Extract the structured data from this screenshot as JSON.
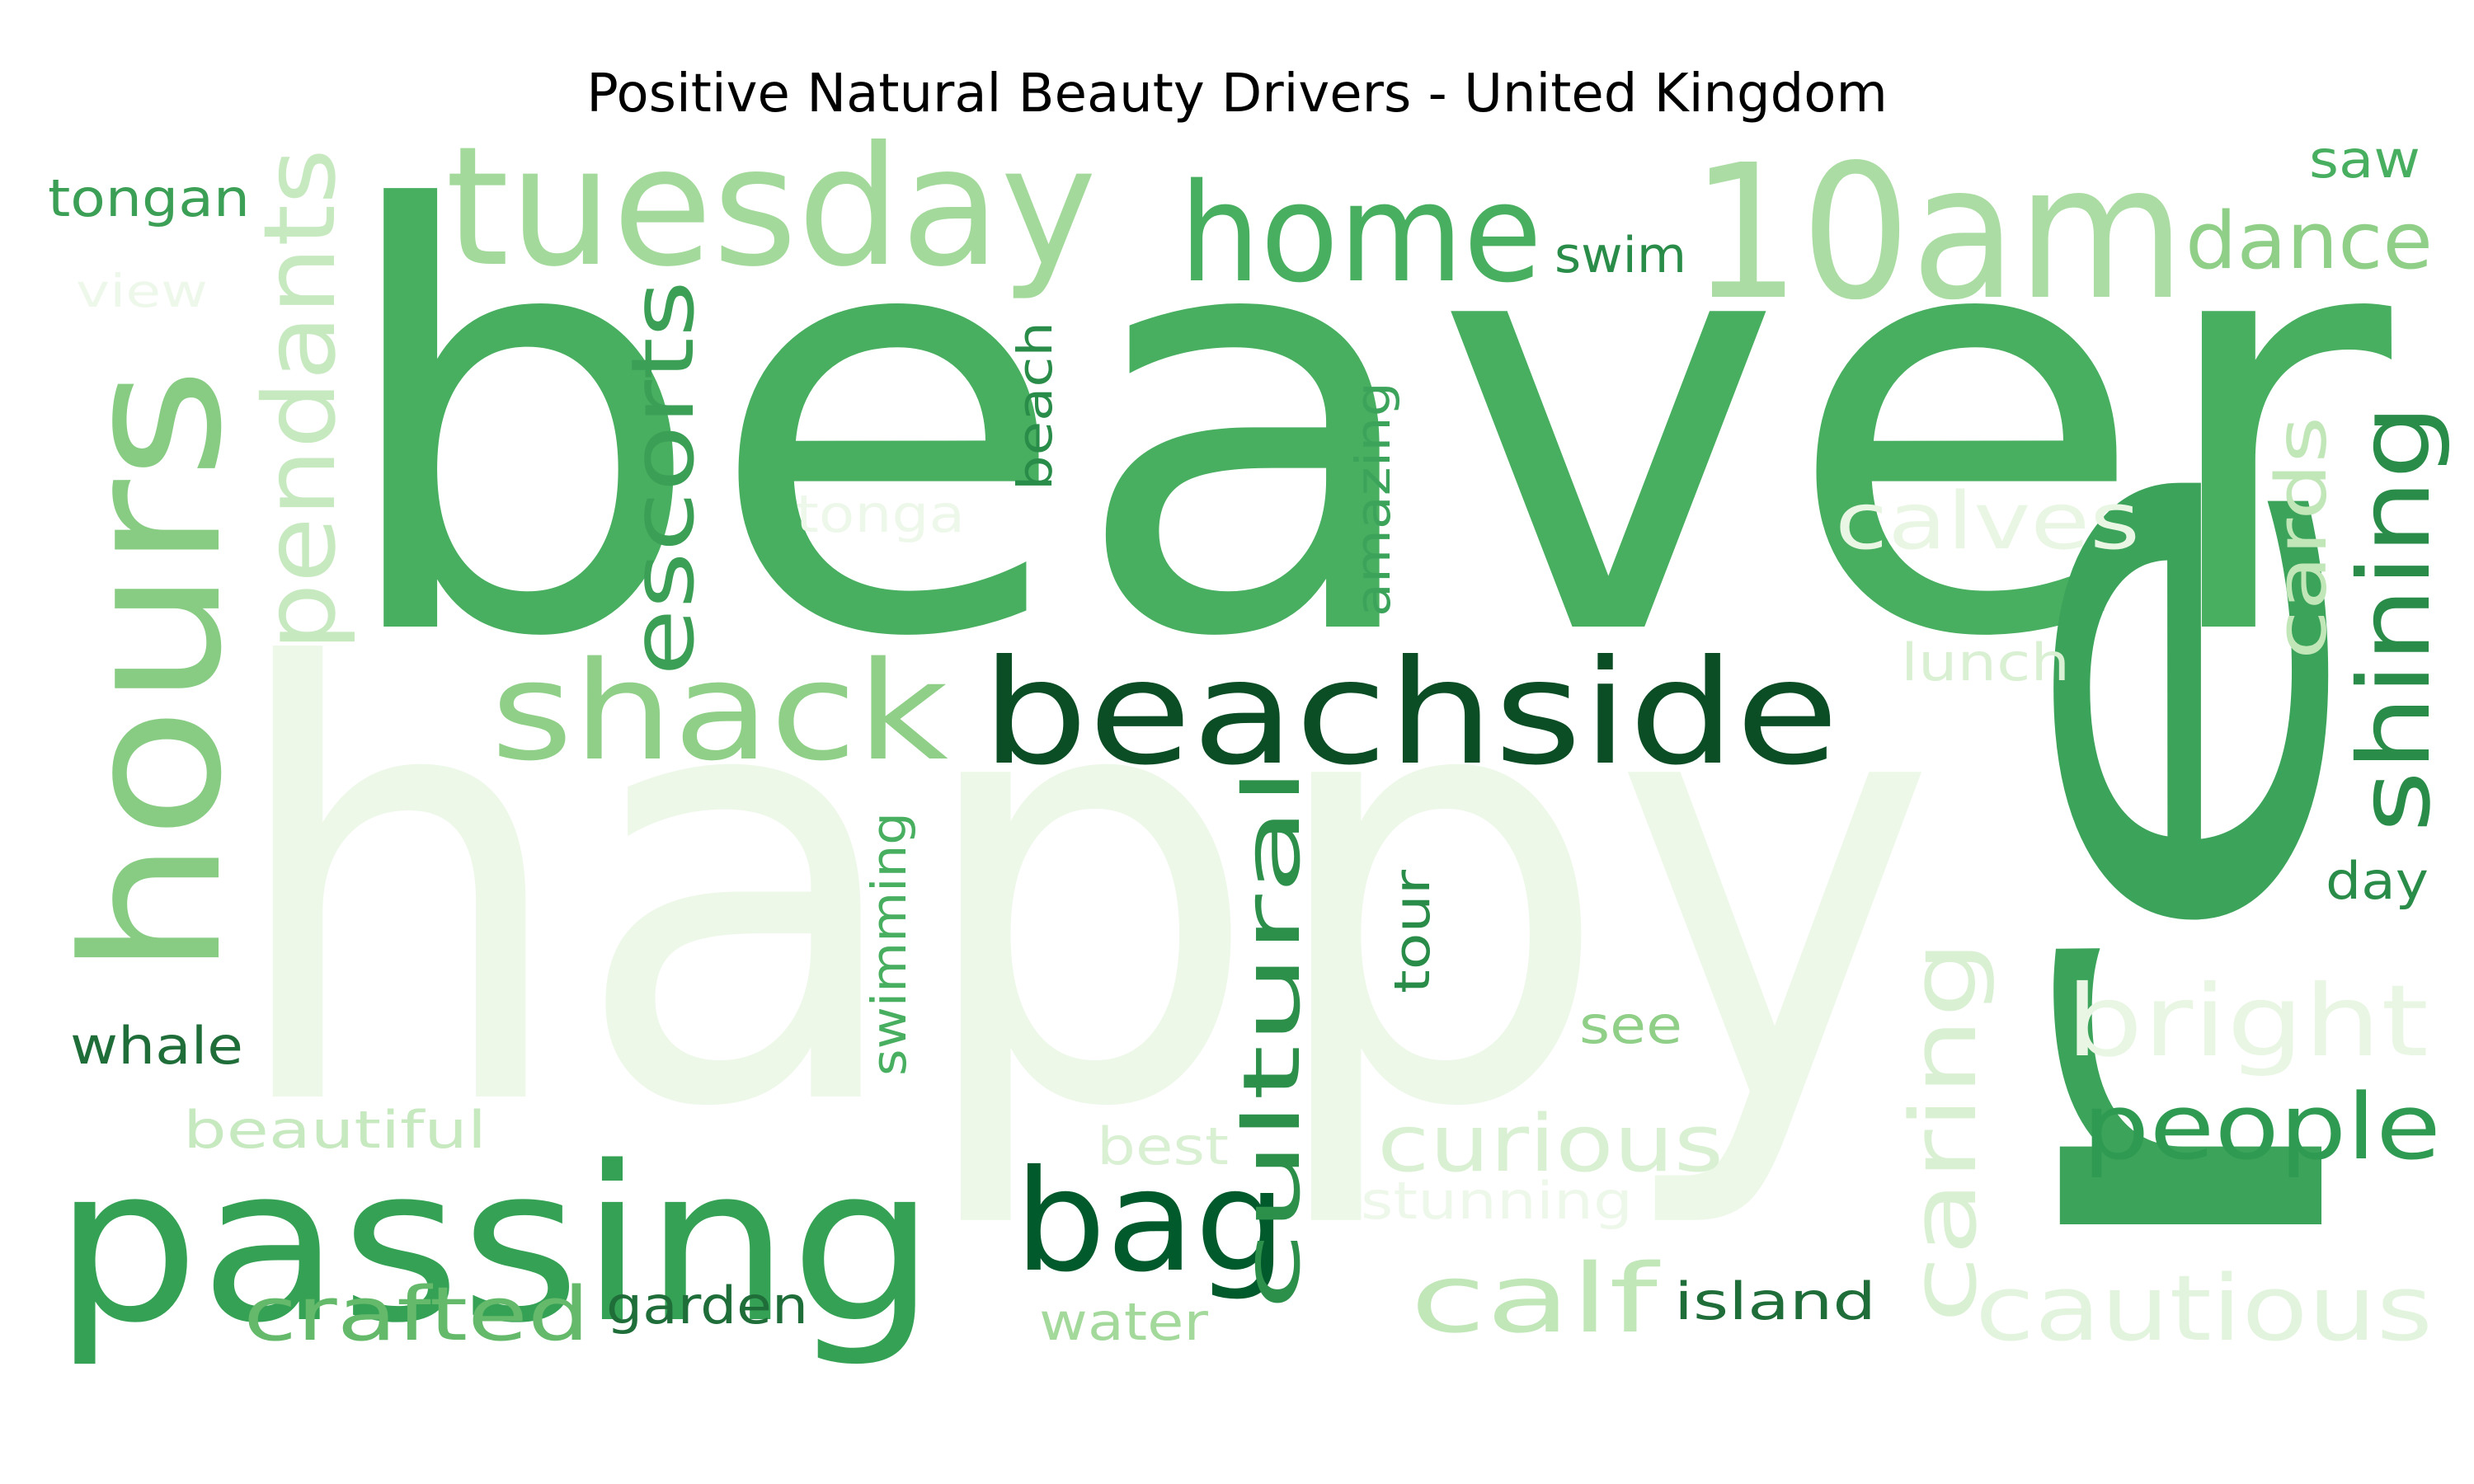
{
  "title": "Positive Natural Beauty Drivers - United Kingdom",
  "palette": {
    "lightest": "#edf8e9",
    "very_light": "#d9f0d3",
    "light": "#c7e9c0",
    "light_mid": "#a1d99b",
    "mid": "#74c476",
    "mid_dark": "#4caf5c",
    "dark": "#31a354",
    "darker": "#238b45",
    "darkest": "#00441b",
    "deep": "#005a2c"
  },
  "words": [
    {
      "text": "beaver",
      "color": "#48ae60"
    },
    {
      "text": "happy",
      "color": "#edf8e9"
    },
    {
      "text": "re",
      "color": "#3ca35a"
    },
    {
      "text": "passing",
      "color": "#35a155"
    },
    {
      "text": "beachside",
      "color": "#0b4d25"
    },
    {
      "text": "hours",
      "color": "#88cc84"
    },
    {
      "text": "tuesday",
      "color": "#a4d99c"
    },
    {
      "text": "home",
      "color": "#48ae60"
    },
    {
      "text": "10am",
      "color": "#abdca3"
    },
    {
      "text": "shack",
      "color": "#8fcf88"
    },
    {
      "text": "bag",
      "color": "#005a2c"
    },
    {
      "text": "cultural",
      "color": "#2c8f4a"
    },
    {
      "text": "escorts",
      "color": "#3b9f55"
    },
    {
      "text": "pendants",
      "color": "#c7e9c0"
    },
    {
      "text": "shining",
      "color": "#2a8c49"
    },
    {
      "text": "dance",
      "color": "#8fcf88"
    },
    {
      "text": "crafted",
      "color": "#64b96a"
    },
    {
      "text": "calf",
      "color": "#c1e6b8"
    },
    {
      "text": "cautious",
      "color": "#e3f4de"
    },
    {
      "text": "people",
      "color": "#2f9a51"
    },
    {
      "text": "curious",
      "color": "#d9f0d3"
    },
    {
      "text": "bright",
      "color": "#e8f6e3"
    },
    {
      "text": "caring",
      "color": "#d9f0d3"
    },
    {
      "text": "calves",
      "color": "#e8f6e3"
    },
    {
      "text": "cards",
      "color": "#c1e6b8"
    },
    {
      "text": "tongan",
      "color": "#3b9f55"
    },
    {
      "text": "view",
      "color": "#eef8ea"
    },
    {
      "text": "saw",
      "color": "#48ae60"
    },
    {
      "text": "swim",
      "color": "#2a8c49"
    },
    {
      "text": "beach",
      "color": "#2a8c49"
    },
    {
      "text": "amazing",
      "color": "#3ca35a"
    },
    {
      "text": "tonga",
      "color": "#eef8ea"
    },
    {
      "text": "lunch",
      "color": "#d9f0d3"
    },
    {
      "text": "swimming",
      "color": "#48ae60"
    },
    {
      "text": "tour",
      "color": "#2a8c49"
    },
    {
      "text": "day",
      "color": "#2a8c49"
    },
    {
      "text": "see",
      "color": "#8fcf88"
    },
    {
      "text": "whale",
      "color": "#1f6e3a"
    },
    {
      "text": "beautiful",
      "color": "#c7e9c0"
    },
    {
      "text": "best",
      "color": "#d9f0d3"
    },
    {
      "text": "stunning",
      "color": "#eef8ea"
    },
    {
      "text": "garden",
      "color": "#1f6e3a"
    },
    {
      "text": "water",
      "color": "#a4d99c"
    },
    {
      "text": "island",
      "color": "#1f6e3a"
    }
  ]
}
